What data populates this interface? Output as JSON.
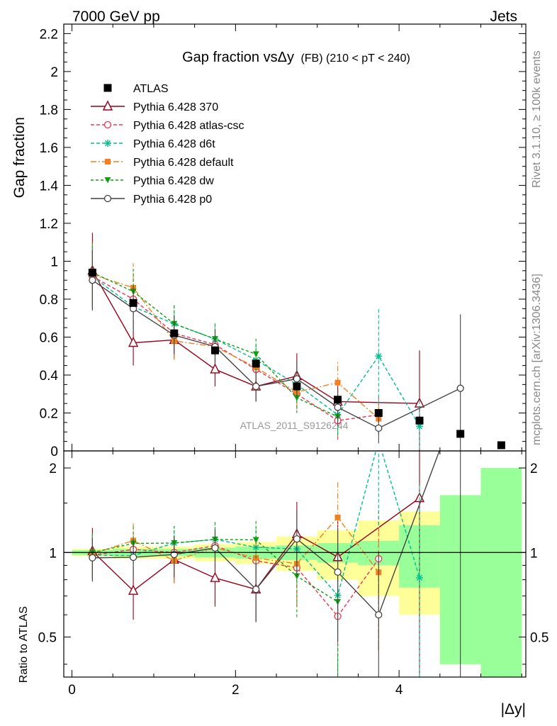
{
  "header": {
    "left": "7000 GeV pp",
    "right": "Jets"
  },
  "side_texts": {
    "rivet": "Rivet 3.1.10, ≥ 100k events",
    "mcplots": "mcplots.cern.ch [arXiv:1306.3436]"
  },
  "chart_data": {
    "type": "scatter",
    "title": "Gap fraction vs Δy (FB) (210 < pT < 240)",
    "title_main": "Gap fraction vsΔy",
    "title_sub": "(FB) (210 < pT < 240)",
    "watermark": "ATLAS_2011_S9126244",
    "xlabel": "|Δy|",
    "ylabel_top": "Gap fraction",
    "ylabel_bottom": "Ratio to ATLAS",
    "xlim": [
      -0.1,
      5.55
    ],
    "ylim_top": [
      0,
      2.25
    ],
    "ylim_ratio": [
      0.36,
      2.3
    ],
    "ratio_scale": "log",
    "x_ticks": [
      "0",
      "2",
      "4"
    ],
    "y_ticks_top": [
      "0",
      "0.2",
      "0.4",
      "0.6",
      "0.8",
      "1",
      "1.2",
      "1.4",
      "1.6",
      "1.8",
      "2",
      "2.2"
    ],
    "y_ticks_ratio": [
      "0.5",
      "1",
      "2"
    ],
    "legend_position": "top-left",
    "x": [
      0.25,
      0.75,
      1.25,
      1.75,
      2.25,
      2.75,
      3.25,
      3.75,
      4.25,
      4.75,
      5.25
    ],
    "data": {
      "name": "ATLAS",
      "values": [
        0.94,
        0.78,
        0.62,
        0.53,
        0.46,
        0.34,
        0.27,
        0.2,
        0.16,
        0.09,
        0.03
      ]
    },
    "band": {
      "x_edges": [
        0,
        0.5,
        1.0,
        1.5,
        2.0,
        2.5,
        3.0,
        3.5,
        4.0,
        4.5,
        5.0,
        5.5
      ],
      "green_half": [
        0.02,
        0.03,
        0.03,
        0.04,
        0.05,
        0.06,
        0.08,
        0.1,
        0.25,
        0.6,
        1.0
      ],
      "yellow_half": [
        0.03,
        0.05,
        0.05,
        0.07,
        0.09,
        0.14,
        0.2,
        0.3,
        0.4,
        0.6,
        1.0
      ]
    },
    "series": [
      {
        "name": "Pythia 6.428 370",
        "color": "#99001a",
        "marker": "open-triangle",
        "dash": "",
        "values": [
          0.95,
          0.57,
          0.585,
          0.43,
          0.34,
          0.395,
          0.26,
          null,
          0.25
        ],
        "errors": [
          0.2,
          0.12,
          0.1,
          0.09,
          0.08,
          0.12,
          0.1,
          null,
          0.28
        ]
      },
      {
        "name": "Pythia 6.428 atlas-csc",
        "color": "#ee3355",
        "marker": "open-circle",
        "dash": "5,3",
        "values": [
          0.92,
          0.8,
          0.62,
          0.56,
          0.43,
          0.3,
          0.16,
          0.19
        ],
        "errors": [
          0.16,
          0.12,
          0.1,
          0.09,
          0.08,
          0.08,
          0.1,
          0.1
        ]
      },
      {
        "name": "Pythia 6.428 d6t",
        "color": "#00c090",
        "marker": "star",
        "dash": "5,3",
        "values": [
          0.92,
          0.76,
          0.67,
          0.59,
          0.48,
          0.35,
          0.19,
          0.5,
          0.13
        ],
        "errors": [
          0.16,
          0.12,
          0.1,
          0.09,
          0.09,
          0.09,
          0.1,
          0.25,
          0.15
        ]
      },
      {
        "name": "Pythia 6.428 default",
        "color": "#f08020",
        "marker": "filled-square",
        "dash": "8,3,2,3",
        "values": [
          0.93,
          0.86,
          0.58,
          0.55,
          0.44,
          0.31,
          0.36,
          0.17
        ],
        "errors": [
          0.16,
          0.13,
          0.1,
          0.09,
          0.08,
          0.08,
          0.12,
          0.08
        ]
      },
      {
        "name": "Pythia 6.428 dw",
        "color": "#10a010",
        "marker": "filled-triangle-down",
        "dash": "4,3",
        "values": [
          0.94,
          0.84,
          0.67,
          0.59,
          0.51,
          0.28,
          0.18
        ],
        "errors": [
          0.16,
          0.13,
          0.1,
          0.09,
          0.09,
          0.08,
          0.1
        ]
      },
      {
        "name": "Pythia 6.428 p0",
        "color": "#444444",
        "marker": "open-circle",
        "dash": "",
        "values": [
          0.9,
          0.75,
          0.61,
          0.55,
          0.34,
          0.38,
          0.23,
          0.12,
          null,
          0.33
        ],
        "errors": [
          0.16,
          0.12,
          0.1,
          0.09,
          0.08,
          0.1,
          0.1,
          0.08,
          null,
          0.39
        ]
      }
    ]
  }
}
